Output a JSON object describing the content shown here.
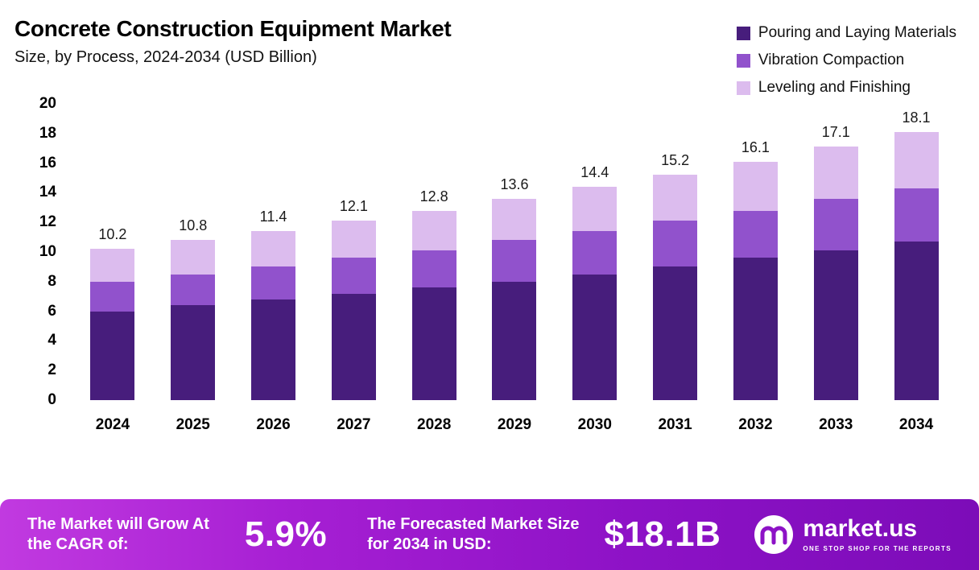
{
  "header": {
    "title": "Concrete Construction Equipment Market",
    "subtitle": "Size, by Process, 2024-2034 (USD Billion)"
  },
  "legend": [
    {
      "label": "Pouring and Laying Materials",
      "color": "#471d7c"
    },
    {
      "label": "Vibration Compaction",
      "color": "#9152cc"
    },
    {
      "label": "Leveling and Finishing",
      "color": "#dcbcee"
    }
  ],
  "chart_data": {
    "type": "bar",
    "stacked": true,
    "title": "Concrete Construction Equipment Market Size, by Process, 2024-2034 (USD Billion)",
    "categories": [
      "2024",
      "2025",
      "2026",
      "2027",
      "2028",
      "2029",
      "2030",
      "2031",
      "2032",
      "2033",
      "2034"
    ],
    "series": [
      {
        "name": "Pouring and Laying Materials",
        "color": "#471d7c",
        "values": [
          6.0,
          6.4,
          6.8,
          7.2,
          7.6,
          8.0,
          8.5,
          9.0,
          9.6,
          10.1,
          10.7
        ]
      },
      {
        "name": "Vibration Compaction",
        "color": "#9152cc",
        "values": [
          2.0,
          2.1,
          2.2,
          2.4,
          2.5,
          2.8,
          2.9,
          3.1,
          3.2,
          3.5,
          3.6
        ]
      },
      {
        "name": "Leveling and Finishing",
        "color": "#dcbcee",
        "values": [
          2.2,
          2.3,
          2.4,
          2.5,
          2.7,
          2.8,
          3.0,
          3.1,
          3.3,
          3.5,
          3.8
        ]
      }
    ],
    "totals": [
      10.2,
      10.8,
      11.4,
      12.1,
      12.8,
      13.6,
      14.4,
      15.2,
      16.1,
      17.1,
      18.1
    ],
    "ylim": [
      0,
      20
    ],
    "yticks": [
      0,
      2,
      4,
      6,
      8,
      10,
      12,
      14,
      16,
      18,
      20
    ],
    "grid": false,
    "legend_position": "top-right"
  },
  "banner": {
    "cagr_label": "The Market will Grow At the CAGR of:",
    "cagr_value": "5.9%",
    "forecast_label": "The Forecasted Market Size for 2034 in USD:",
    "forecast_value": "$18.1B",
    "logo_text": "market.us",
    "logo_tagline": "ONE STOP SHOP FOR THE REPORTS"
  }
}
